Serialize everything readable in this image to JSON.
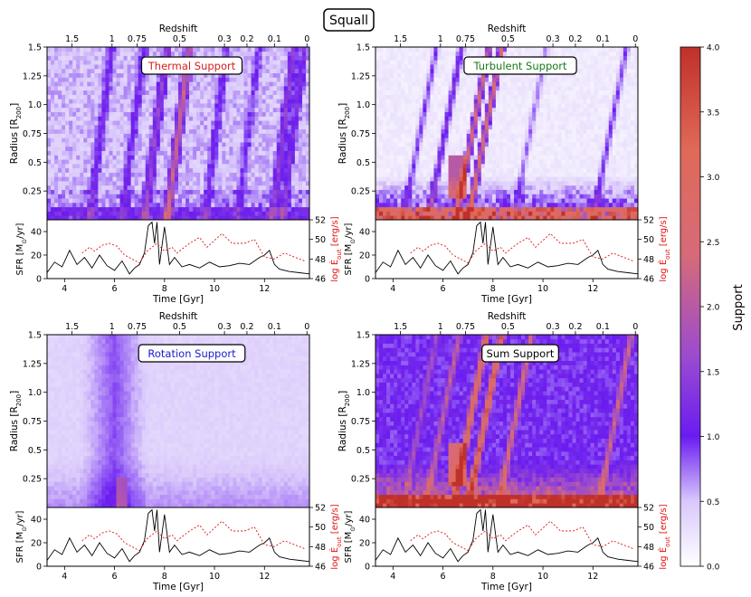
{
  "chart_data": {
    "type": "heatmap",
    "figure_title": "Squall",
    "colorbar": {
      "label": "Support",
      "range": [
        0.0,
        4.0
      ],
      "ticks": [
        "0.0",
        "0.5",
        "1.0",
        "1.5",
        "2.0",
        "2.5",
        "3.0",
        "3.5",
        "4.0"
      ],
      "colors": [
        "#ffffff",
        "#6a1cf0",
        "#c0302a"
      ]
    },
    "axes": {
      "time_label": "Time [Gyr]",
      "time_range": [
        3.3,
        13.8
      ],
      "time_ticks": [
        "4",
        "6",
        "8",
        "10",
        "12"
      ],
      "radius_label": "Radius [R",
      "radius_sub": "200",
      "radius_close": "]",
      "radius_range": [
        0.0,
        1.5
      ],
      "radius_ticks": [
        "0.25",
        "0.5",
        "0.75",
        "1.0",
        "1.25",
        "1.5"
      ],
      "redshift_label": "Redshift",
      "redshift_ticks": [
        {
          "z": "1.5",
          "t": 4.3
        },
        {
          "z": "1",
          "t": 5.9
        },
        {
          "z": "0.75",
          "t": 6.9
        },
        {
          "z": "0.5",
          "t": 8.6
        },
        {
          "z": "0.3",
          "t": 10.4
        },
        {
          "z": "0.2",
          "t": 11.3
        },
        {
          "z": "0.1",
          "t": 12.4
        },
        {
          "z": "0",
          "t": 13.7
        }
      ],
      "sfr_label": "SFR [M",
      "sfr_sub": "⊙",
      "sfr_close": "/yr]",
      "sfr_range": [
        0,
        50
      ],
      "sfr_ticks": [
        "0",
        "20",
        "40"
      ],
      "eout_label": "log Ė",
      "eout_sub": "out",
      "eout_close": " [erg/s]",
      "eout_range": [
        46,
        52
      ],
      "eout_ticks": [
        "46",
        "48",
        "50",
        "52"
      ],
      "eout_color": "#e01010"
    },
    "panels": [
      {
        "title": "Thermal Support",
        "title_color": "#d42020",
        "kind": "thermal"
      },
      {
        "title": "Turbulent Support",
        "title_color": "#1a7a1a",
        "kind": "turbulent"
      },
      {
        "title": "Rotation Support",
        "title_color": "#1a1ad0",
        "kind": "rotation"
      },
      {
        "title": "Sum Support",
        "title_color": "#000000",
        "kind": "sum"
      }
    ],
    "sfr_series": {
      "name": "SFR",
      "t": [
        3.3,
        3.6,
        3.9,
        4.2,
        4.5,
        4.8,
        5.1,
        5.4,
        5.7,
        6.0,
        6.3,
        6.6,
        6.8,
        7.0,
        7.2,
        7.35,
        7.5,
        7.6,
        7.7,
        7.8,
        8.0,
        8.2,
        8.4,
        8.7,
        9.0,
        9.4,
        9.8,
        10.2,
        10.6,
        11.0,
        11.4,
        11.8,
        12.0,
        12.2,
        12.4,
        12.6,
        13.0,
        13.4,
        13.8
      ],
      "values": [
        5,
        14,
        10,
        24,
        12,
        18,
        9,
        20,
        11,
        7,
        15,
        4,
        9,
        12,
        22,
        45,
        48,
        30,
        48,
        12,
        44,
        12,
        18,
        10,
        12,
        9,
        14,
        10,
        11,
        13,
        12,
        18,
        20,
        24,
        12,
        8,
        6,
        5,
        4
      ]
    },
    "eout_series": {
      "name": "log E_out",
      "t": [
        4.7,
        5.0,
        5.2,
        5.5,
        5.8,
        6.1,
        6.4,
        7.0,
        7.3,
        7.7,
        8.0,
        8.3,
        8.5,
        9.0,
        9.4,
        9.7,
        10.3,
        10.7,
        11.2,
        11.6,
        12.0,
        12.4,
        12.8,
        13.6
      ],
      "values": [
        48.6,
        49.2,
        48.8,
        49.4,
        49.6,
        49.3,
        48.4,
        47.6,
        48.8,
        49.6,
        48.8,
        49.2,
        48.6,
        49.6,
        50.2,
        49.2,
        50.6,
        49.6,
        49.6,
        50.0,
        48.2,
        48.0,
        48.6,
        47.8
      ]
    }
  }
}
